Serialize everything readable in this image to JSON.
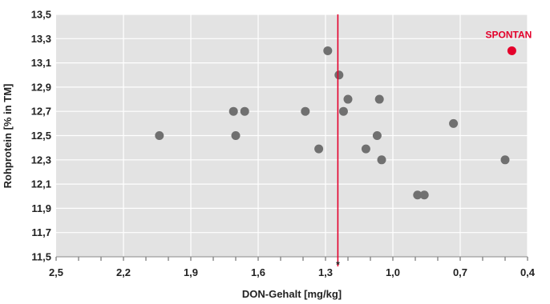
{
  "chart_data": {
    "type": "scatter",
    "xlabel": "DON-Gehalt [mg/kg]",
    "ylabel": "Rohprotein [% in TM]",
    "xlim": [
      2.5,
      0.4
    ],
    "ylim": [
      11.5,
      13.5
    ],
    "x_reversed": true,
    "grid": true,
    "x_ticks": [
      "2,5",
      "2,2",
      "1,9",
      "1,6",
      "1,3",
      "1,0",
      "0,7",
      "0,4"
    ],
    "y_ticks": [
      "11,5",
      "11,7",
      "11,9",
      "12,1",
      "12,3",
      "12,5",
      "12,7",
      "12,9",
      "13,1",
      "13,3",
      "13,5"
    ],
    "reference_line": {
      "x": 1.245,
      "label": "*",
      "color": "#e4002b"
    },
    "highlight": {
      "name": "SPONTAN",
      "x": 0.47,
      "y": 13.2,
      "color": "#e4002b"
    },
    "point_color": "#707070",
    "points": [
      {
        "x": 2.04,
        "y": 12.5
      },
      {
        "x": 1.71,
        "y": 12.7
      },
      {
        "x": 1.7,
        "y": 12.5
      },
      {
        "x": 1.66,
        "y": 12.7
      },
      {
        "x": 1.39,
        "y": 12.7
      },
      {
        "x": 1.33,
        "y": 12.39
      },
      {
        "x": 1.29,
        "y": 13.2
      },
      {
        "x": 1.24,
        "y": 13.0
      },
      {
        "x": 1.22,
        "y": 12.7
      },
      {
        "x": 1.2,
        "y": 12.8
      },
      {
        "x": 1.12,
        "y": 12.39
      },
      {
        "x": 1.07,
        "y": 12.5
      },
      {
        "x": 1.06,
        "y": 12.8
      },
      {
        "x": 1.05,
        "y": 12.3
      },
      {
        "x": 0.89,
        "y": 12.01
      },
      {
        "x": 0.86,
        "y": 12.01
      },
      {
        "x": 0.73,
        "y": 12.6
      },
      {
        "x": 0.5,
        "y": 12.3
      }
    ]
  }
}
